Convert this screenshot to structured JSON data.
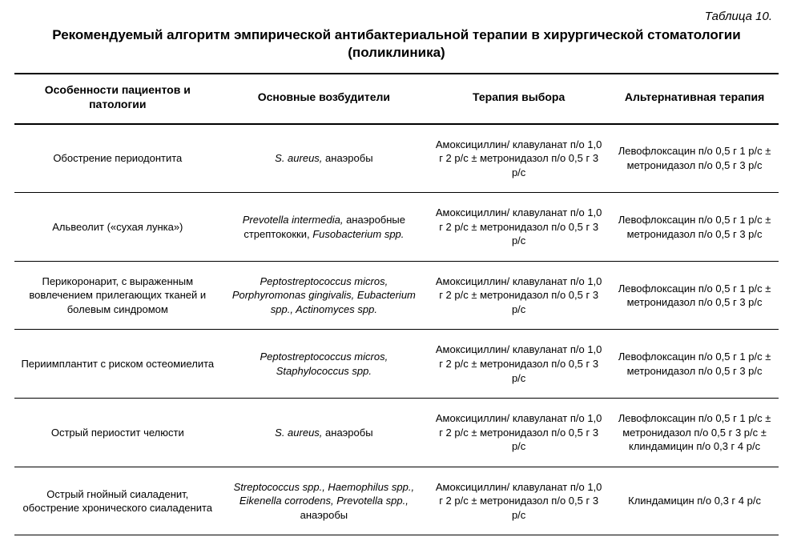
{
  "table_number": "Таблица 10.",
  "title": "Рекомендуемый алгоритм эмпирической антибактериальной терапии в хирургической стоматологии (поликлиника)",
  "columns": {
    "col1": "Особенности пациентов и патологии",
    "col2": "Основные возбудители",
    "col3": "Терапия выбора",
    "col4": "Альтернативная терапия"
  },
  "column_widths": [
    "27%",
    "27%",
    "24%",
    "22%"
  ],
  "rows": [
    {
      "features": "Обострение периодонтита",
      "pathogens_html": "<span class=\"italic\">S. aureus,</span> анаэробы",
      "therapy": "Амоксициллин/ клавуланат п/о 1,0 г 2 р/с ± метронидазол п/о 0,5 г 3 р/с",
      "alternative": "Левофлоксацин п/о 0,5 г 1 р/с ± метронидазол п/о 0,5 г 3 р/с"
    },
    {
      "features": "Альвеолит («сухая лунка»)",
      "pathogens_html": "<span class=\"italic\">Prevotella intermedia,</span> анаэробные стрептококки, <span class=\"italic\">Fusobacterium spp.</span>",
      "therapy": "Амоксициллин/ клавуланат п/о 1,0 г 2 р/с ± метронидазол п/о 0,5 г 3 р/с",
      "alternative": "Левофлоксацин п/о 0,5 г 1 р/с ± метронидазол п/о 0,5 г 3 р/с"
    },
    {
      "features": "Перикоронарит, с выраженным вовлечением прилегающих тканей и болевым синдромом",
      "pathogens_html": "<span class=\"italic\">Peptostreptococcus micros, Porphyromonas gingivalis, Eubacterium spp., Actinomyces spp.</span>",
      "therapy": "Амоксициллин/ клавуланат п/о 1,0 г 2 р/с ± метронидазол п/о 0,5 г 3 р/с",
      "alternative": "Левофлоксацин п/о 0,5 г 1 р/с ± метронидазол п/о 0,5 г 3 р/с"
    },
    {
      "features": "Периимплантит с риском остеомиелита",
      "pathogens_html": "<span class=\"italic\">Peptostreptococcus micros, Staphylococcus spp.</span>",
      "therapy": "Амоксициллин/ клавуланат п/о 1,0 г 2 р/с ± метронидазол п/о 0,5 г 3 р/с",
      "alternative": "Левофлоксацин п/о 0,5 г 1 р/с ± метронидазол п/о 0,5 г 3 р/с"
    },
    {
      "features": "Острый периостит челюсти",
      "pathogens_html": "<span class=\"italic\">S. aureus,</span> анаэробы",
      "therapy": "Амоксициллин/ клавуланат п/о 1,0 г 2 р/с ± метронидазол п/о 0,5 г 3 р/с",
      "alternative": "Левофлоксацин п/о 0,5 г 1 р/с ± метронидазол п/о 0,5 г 3 р/с ± клиндамицин п/о 0,3 г 4 р/с"
    },
    {
      "features": "Острый гнойный сиаладенит, обострение хронического сиаладенита",
      "pathogens_html": "<span class=\"italic\">Streptococcus spp., Haemophilus spp., Eikenella corrodens, Prevotella spp.,</span> анаэробы",
      "therapy": "Амоксициллин/ клавуланат п/о 1,0 г 2 р/с ± метронидазол п/о 0,5 г 3 р/с",
      "alternative": "Клиндамицин п/о 0,3 г 4 р/с"
    }
  ],
  "styling": {
    "font_family": "Arial, Helvetica, sans-serif",
    "body_font_size": 13,
    "title_font_size": 17,
    "header_font_size": 14,
    "cell_font_size": 13,
    "text_color": "#000000",
    "background_color": "#ffffff",
    "header_border_width": 2,
    "row_border_width": 1,
    "border_color": "#000000"
  }
}
